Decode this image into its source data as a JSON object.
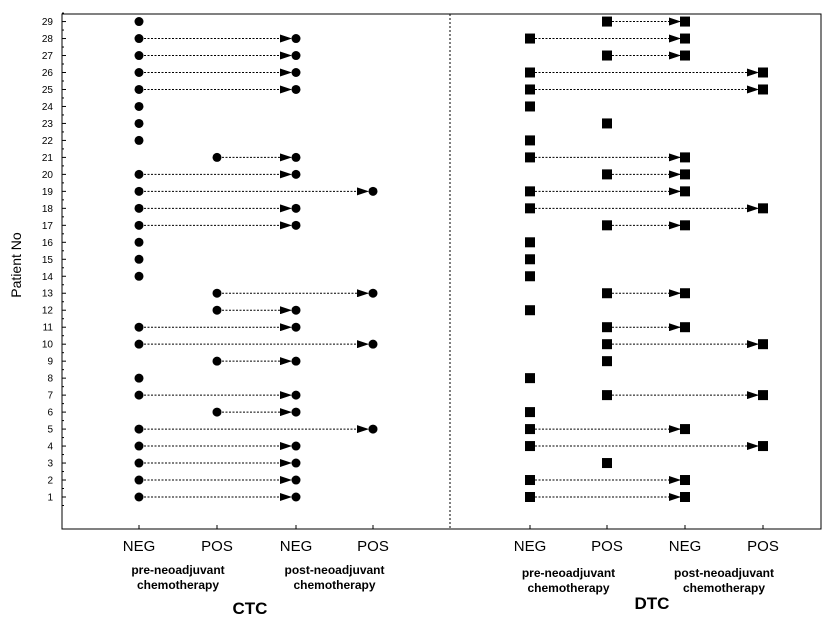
{
  "chart_data": {
    "type": "scatter",
    "ylabel": "Patient No",
    "y_ticks": [
      "1",
      "2",
      "3",
      "4",
      "5",
      "6",
      "7",
      "8",
      "9",
      "10",
      "11",
      "12",
      "13",
      "14",
      "15",
      "16",
      "17",
      "18",
      "19",
      "20",
      "21",
      "22",
      "23",
      "24",
      "25",
      "26",
      "27",
      "28",
      "29"
    ],
    "ylim": [
      0,
      30
    ],
    "categories": [
      "NEG",
      "POS",
      "NEG",
      "POS"
    ],
    "phases": [
      [
        "pre-neoadjuvant",
        "chemotherapy"
      ],
      [
        "post-neoadjuvant",
        "chemotherapy"
      ]
    ],
    "grid": false,
    "panels": [
      {
        "title": "CTC",
        "marker": "circle",
        "single_points": [
          {
            "patient": 29,
            "status": "NEG"
          },
          {
            "patient": 24,
            "status": "NEG"
          },
          {
            "patient": 23,
            "status": "NEG"
          },
          {
            "patient": 22,
            "status": "NEG"
          },
          {
            "patient": 16,
            "status": "NEG"
          },
          {
            "patient": 15,
            "status": "NEG"
          },
          {
            "patient": 14,
            "status": "NEG"
          },
          {
            "patient": 8,
            "status": "NEG"
          }
        ],
        "transitions": [
          {
            "patient": 28,
            "pre": "NEG",
            "post": "NEG"
          },
          {
            "patient": 27,
            "pre": "NEG",
            "post": "NEG"
          },
          {
            "patient": 26,
            "pre": "NEG",
            "post": "NEG"
          },
          {
            "patient": 25,
            "pre": "NEG",
            "post": "NEG"
          },
          {
            "patient": 21,
            "pre": "POS",
            "post": "NEG"
          },
          {
            "patient": 20,
            "pre": "NEG",
            "post": "NEG"
          },
          {
            "patient": 19,
            "pre": "NEG",
            "post": "POS"
          },
          {
            "patient": 18,
            "pre": "NEG",
            "post": "NEG"
          },
          {
            "patient": 17,
            "pre": "NEG",
            "post": "NEG"
          },
          {
            "patient": 13,
            "pre": "POS",
            "post": "POS"
          },
          {
            "patient": 12,
            "pre": "POS",
            "post": "NEG"
          },
          {
            "patient": 11,
            "pre": "NEG",
            "post": "NEG"
          },
          {
            "patient": 10,
            "pre": "NEG",
            "post": "POS"
          },
          {
            "patient": 9,
            "pre": "POS",
            "post": "NEG"
          },
          {
            "patient": 7,
            "pre": "NEG",
            "post": "NEG"
          },
          {
            "patient": 6,
            "pre": "POS",
            "post": "NEG"
          },
          {
            "patient": 5,
            "pre": "NEG",
            "post": "POS"
          },
          {
            "patient": 4,
            "pre": "NEG",
            "post": "NEG"
          },
          {
            "patient": 3,
            "pre": "NEG",
            "post": "NEG"
          },
          {
            "patient": 2,
            "pre": "NEG",
            "post": "NEG"
          },
          {
            "patient": 1,
            "pre": "NEG",
            "post": "NEG"
          }
        ]
      },
      {
        "title": "DTC",
        "marker": "square",
        "single_points": [
          {
            "patient": 24,
            "status": "NEG"
          },
          {
            "patient": 23,
            "status": "POS"
          },
          {
            "patient": 22,
            "status": "NEG"
          },
          {
            "patient": 16,
            "status": "NEG"
          },
          {
            "patient": 15,
            "status": "NEG"
          },
          {
            "patient": 14,
            "status": "NEG"
          },
          {
            "patient": 12,
            "status": "NEG"
          },
          {
            "patient": 9,
            "status": "POS"
          },
          {
            "patient": 8,
            "status": "NEG"
          },
          {
            "patient": 6,
            "status": "NEG"
          },
          {
            "patient": 3,
            "status": "POS"
          }
        ],
        "transitions": [
          {
            "patient": 29,
            "pre": "POS",
            "post": "NEG"
          },
          {
            "patient": 28,
            "pre": "NEG",
            "post": "NEG"
          },
          {
            "patient": 27,
            "pre": "POS",
            "post": "NEG"
          },
          {
            "patient": 26,
            "pre": "NEG",
            "post": "POS"
          },
          {
            "patient": 25,
            "pre": "NEG",
            "post": "POS"
          },
          {
            "patient": 21,
            "pre": "NEG",
            "post": "NEG"
          },
          {
            "patient": 20,
            "pre": "POS",
            "post": "NEG"
          },
          {
            "patient": 19,
            "pre": "NEG",
            "post": "NEG"
          },
          {
            "patient": 18,
            "pre": "NEG",
            "post": "POS"
          },
          {
            "patient": 17,
            "pre": "POS",
            "post": "NEG"
          },
          {
            "patient": 13,
            "pre": "POS",
            "post": "NEG"
          },
          {
            "patient": 11,
            "pre": "POS",
            "post": "NEG"
          },
          {
            "patient": 10,
            "pre": "POS",
            "post": "POS"
          },
          {
            "patient": 7,
            "pre": "POS",
            "post": "POS"
          },
          {
            "patient": 5,
            "pre": "NEG",
            "post": "NEG"
          },
          {
            "patient": 4,
            "pre": "NEG",
            "post": "POS"
          },
          {
            "patient": 2,
            "pre": "NEG",
            "post": "NEG"
          },
          {
            "patient": 1,
            "pre": "NEG",
            "post": "NEG"
          }
        ]
      }
    ]
  }
}
